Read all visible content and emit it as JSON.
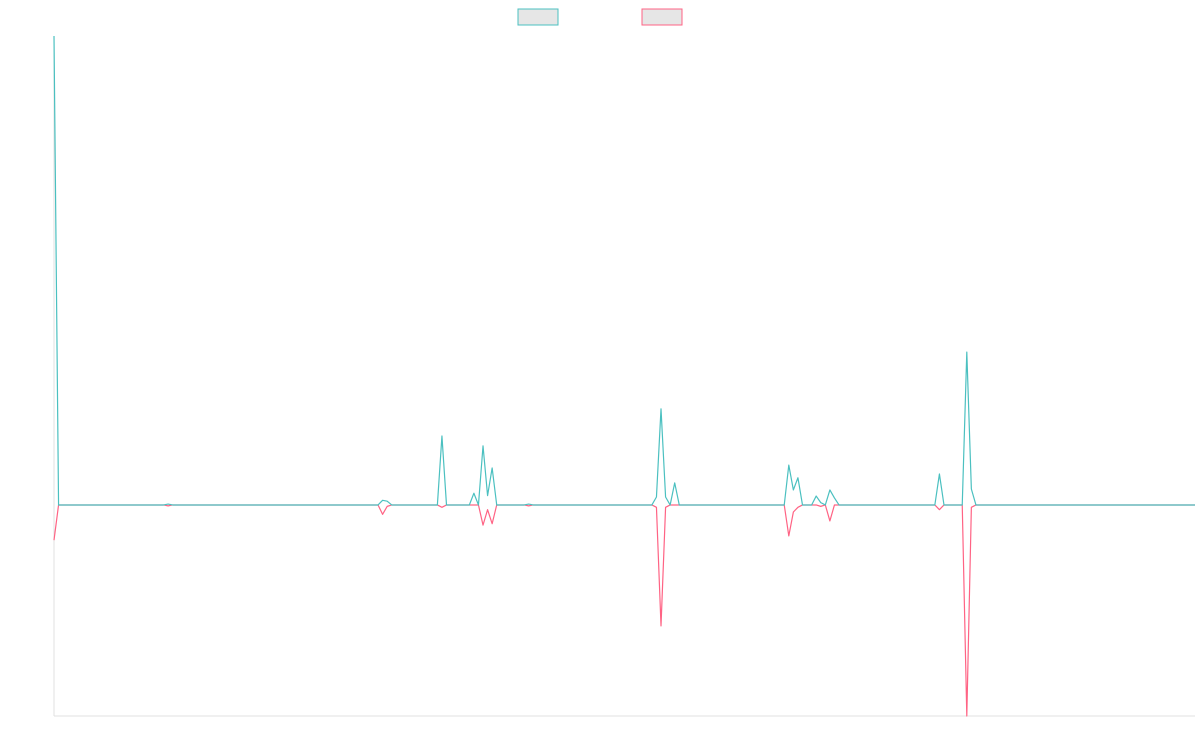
{
  "chart_data": {
    "type": "line",
    "x": [
      0,
      1,
      24,
      25,
      26,
      71,
      72,
      73,
      74,
      84,
      85,
      86,
      91,
      92,
      93,
      94,
      95,
      96,
      97,
      103,
      104,
      105,
      131,
      132,
      133,
      134,
      135,
      136,
      137,
      160,
      161,
      162,
      163,
      164,
      166,
      167,
      168,
      169,
      170,
      171,
      172,
      193,
      194,
      195,
      199,
      200,
      201,
      202,
      250
    ],
    "xlim": [
      0,
      250
    ],
    "ylim": [
      -45,
      100
    ],
    "legend": "top",
    "series": [
      {
        "color": "#ff6384",
        "values": [
          -7.5,
          0,
          0,
          -0.2,
          0,
          0,
          -2,
          -0.3,
          0,
          0,
          -0.5,
          0,
          0,
          0,
          0,
          -4.3,
          -1,
          -4,
          0,
          0,
          -0.2,
          0,
          0,
          -0.5,
          -25.8,
          -0.5,
          0,
          0,
          0,
          0,
          -6.6,
          -1.5,
          -0.5,
          0,
          0,
          0,
          -0.3,
          0,
          -3.4,
          0,
          0,
          0,
          -1,
          0,
          0,
          -45,
          -0.5,
          0,
          0
        ]
      },
      {
        "color": "#4bc0c0",
        "values": [
          100,
          0,
          0,
          0.2,
          0,
          0,
          1,
          0.8,
          0,
          0,
          14.7,
          0,
          0,
          2.5,
          0,
          12.6,
          2,
          7.9,
          0,
          0,
          0.2,
          0,
          0,
          1.7,
          20.5,
          1.7,
          0,
          4.7,
          0,
          0,
          8.5,
          3.2,
          5.8,
          0,
          0,
          1.9,
          0.5,
          0,
          3.2,
          1.5,
          0,
          0,
          6.6,
          0,
          0,
          32.6,
          3.4,
          0,
          0
        ]
      }
    ]
  }
}
